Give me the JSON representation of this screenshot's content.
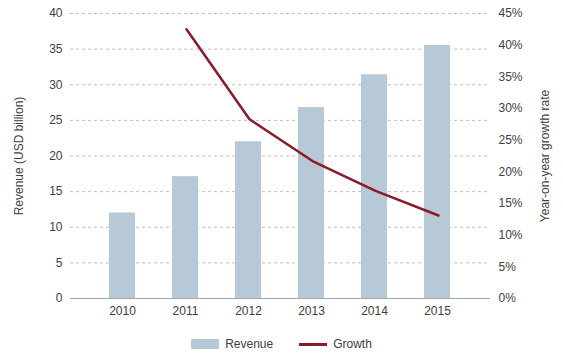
{
  "chart_data": {
    "type": "bar",
    "categories": [
      "2010",
      "2011",
      "2012",
      "2013",
      "2014",
      "2015"
    ],
    "series": [
      {
        "name": "Revenue",
        "type": "bar",
        "color": "#b7c9d6",
        "values": [
          12,
          17.1,
          22,
          26.8,
          31.4,
          35.5
        ]
      },
      {
        "name": "Growth",
        "type": "line",
        "axis": "y2",
        "color": "#8b1a2b",
        "values": [
          null,
          42.5,
          28.3,
          21.7,
          17.0,
          13.1
        ]
      }
    ],
    "ylabel": "Revenue (USD billion)",
    "y2label": "Year-on-year growth rate",
    "ylim": [
      0,
      40
    ],
    "yticks": [
      0,
      5,
      10,
      15,
      20,
      25,
      30,
      35,
      40
    ],
    "y2lim": [
      0,
      45
    ],
    "y2ticks": [
      {
        "value": 0,
        "label": "0%"
      },
      {
        "value": 5,
        "label": "5%"
      },
      {
        "value": 10,
        "label": "10%"
      },
      {
        "value": 15,
        "label": "15%"
      },
      {
        "value": 20,
        "label": "20%"
      },
      {
        "value": 25,
        "label": "25%"
      },
      {
        "value": 30,
        "label": "30%"
      },
      {
        "value": 35,
        "label": "35%"
      },
      {
        "value": 40,
        "label": "40%"
      },
      {
        "value": 45,
        "label": "45%"
      }
    ],
    "grid": true,
    "legend": "bottom"
  }
}
